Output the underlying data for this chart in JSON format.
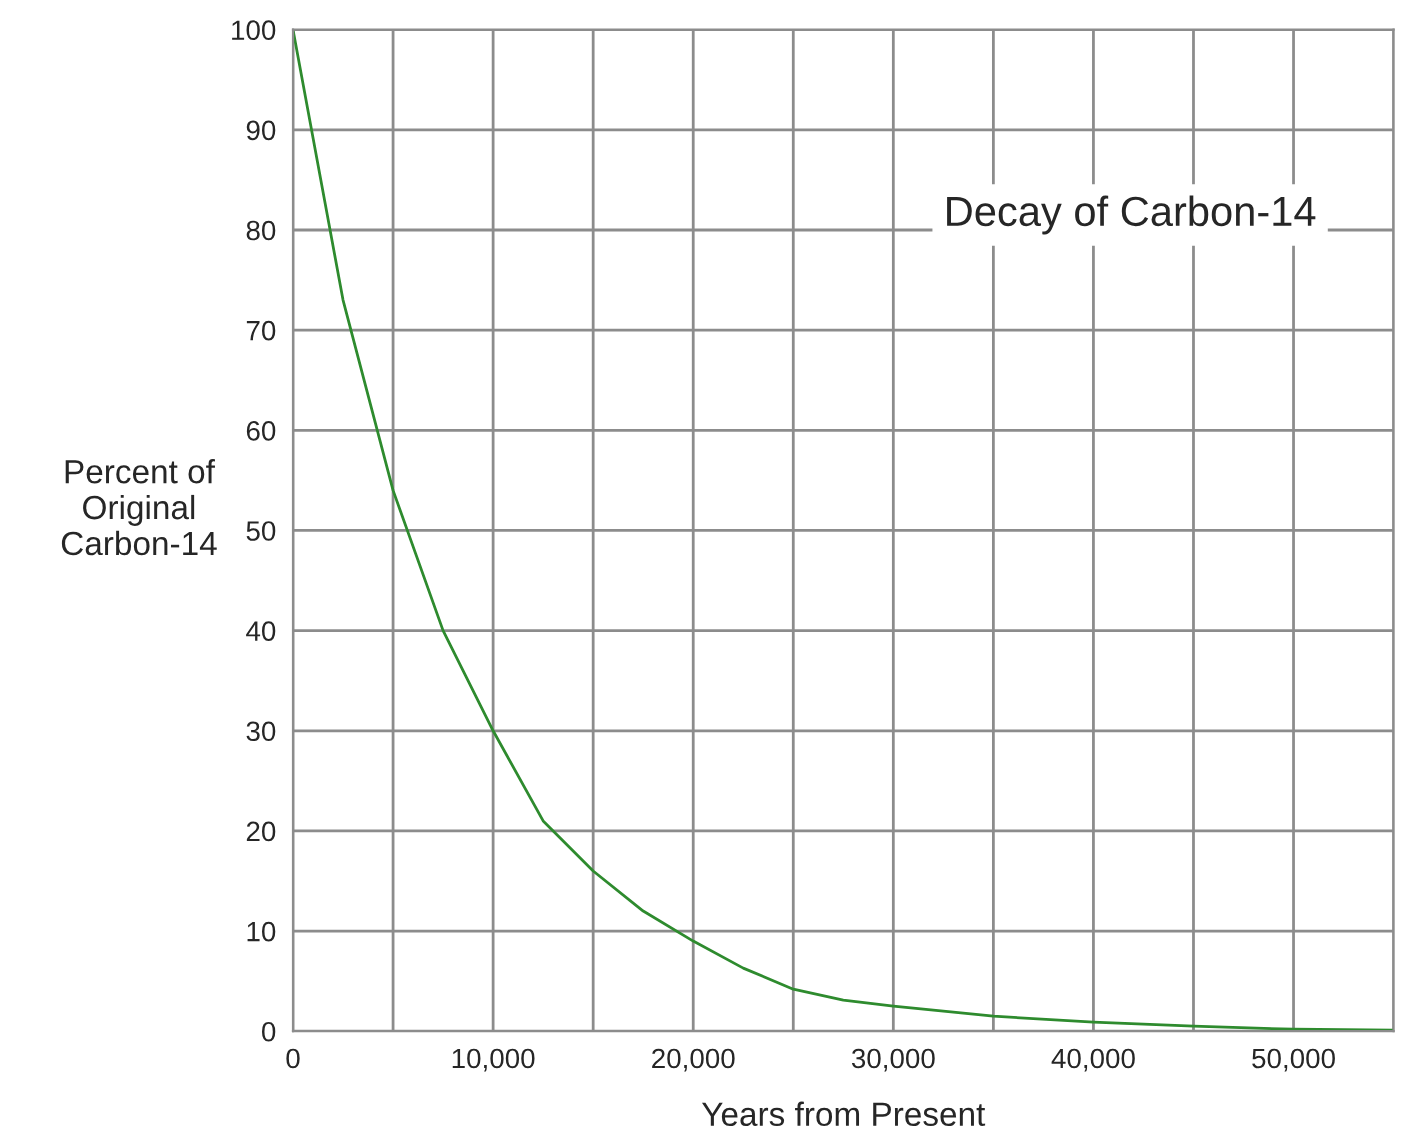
{
  "chart_data": {
    "type": "line",
    "title": "Decay of Carbon-14",
    "xlabel": "Years from Present",
    "ylabel": "Percent of\nOriginal\nCarbon-14",
    "x": [
      0,
      2500,
      5000,
      7500,
      10000,
      12500,
      15000,
      17500,
      20000,
      22500,
      25000,
      27500,
      30000,
      35000,
      40000,
      45000,
      50000,
      55000
    ],
    "series": [
      {
        "color": "#2e8b2e",
        "values": [
          100,
          73,
          54,
          40,
          30,
          21,
          16,
          12,
          9,
          6.3,
          4.2,
          3.1,
          2.5,
          1.5,
          0.9,
          0.5,
          0.2,
          0.1
        ]
      }
    ],
    "xlim": [
      0,
      55000
    ],
    "ylim": [
      0,
      100
    ],
    "xticks": [
      0,
      {
        "value": 5000,
        "label": null
      },
      {
        "value": 10000,
        "label": "10,000"
      },
      {
        "value": 15000,
        "label": null
      },
      {
        "value": 20000,
        "label": "20,000"
      },
      {
        "value": 25000,
        "label": null
      },
      {
        "value": 30000,
        "label": "30,000"
      },
      {
        "value": 35000,
        "label": null
      },
      {
        "value": 40000,
        "label": "40,000"
      },
      {
        "value": 45000,
        "label": null
      },
      {
        "value": 50000,
        "label": "50,000"
      },
      {
        "value": 55000,
        "label": null
      }
    ],
    "yticks": [
      0,
      10,
      20,
      30,
      40,
      50,
      60,
      70,
      80,
      90,
      100
    ],
    "grid": true,
    "legend": false,
    "marker": "none",
    "line_style": "solid"
  }
}
